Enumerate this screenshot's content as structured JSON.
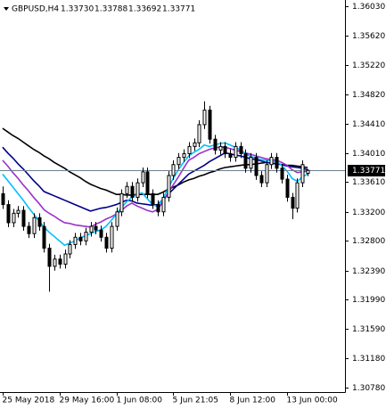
{
  "chart_data": {
    "type": "candlestick",
    "header": {
      "symbol": "GBPUSD,H4",
      "ohlc": [
        "1.33730",
        "1.33788",
        "1.33692",
        "1.33771"
      ]
    },
    "categories": [
      "25 May 2018",
      null,
      null,
      null,
      null,
      null,
      null,
      null,
      null,
      null,
      null,
      "29 May 16:00",
      null,
      null,
      null,
      null,
      null,
      null,
      null,
      null,
      null,
      null,
      "1 Jun 08:00",
      null,
      null,
      null,
      null,
      null,
      null,
      null,
      null,
      null,
      null,
      "5 Jun 21:05",
      null,
      null,
      null,
      null,
      null,
      null,
      null,
      null,
      null,
      null,
      "8 Jun 12:00",
      null,
      null,
      null,
      null,
      null,
      null,
      null,
      null,
      null,
      null,
      "13 Jun 00:00",
      null,
      null,
      null,
      null
    ],
    "open": [
      1.3345,
      1.333,
      1.3305,
      1.3318,
      1.3322,
      1.33,
      1.329,
      1.3312,
      1.33,
      1.327,
      1.3245,
      1.3255,
      1.3248,
      1.3262,
      1.3275,
      1.3285,
      1.328,
      1.3292,
      1.33,
      1.3295,
      1.3285,
      1.327,
      1.33,
      1.332,
      1.3345,
      1.3355,
      1.334,
      1.336,
      1.3375,
      1.3345,
      1.333,
      1.332,
      1.334,
      1.337,
      1.3385,
      1.3395,
      1.34,
      1.341,
      1.3415,
      1.344,
      1.346,
      1.342,
      1.3405,
      1.341,
      1.34,
      1.3395,
      1.341,
      1.34,
      1.338,
      1.3395,
      1.337,
      1.336,
      1.3385,
      1.3395,
      1.338,
      1.3365,
      1.334,
      1.3325,
      1.336,
      1.3373
    ],
    "high": [
      1.3355,
      1.3336,
      1.3324,
      1.3328,
      1.3328,
      1.3306,
      1.3318,
      1.3318,
      1.3306,
      1.3276,
      1.3261,
      1.3261,
      1.3268,
      1.3281,
      1.3291,
      1.3291,
      1.3298,
      1.3306,
      1.3306,
      1.3301,
      1.3291,
      1.3306,
      1.3326,
      1.3351,
      1.3361,
      1.3361,
      1.3366,
      1.3381,
      1.3381,
      1.3351,
      1.3336,
      1.3346,
      1.3376,
      1.3391,
      1.3401,
      1.3406,
      1.3416,
      1.3421,
      1.3446,
      1.3472,
      1.3466,
      1.3426,
      1.3416,
      1.3416,
      1.3406,
      1.3416,
      1.3416,
      1.3406,
      1.3401,
      1.3401,
      1.3376,
      1.3391,
      1.3401,
      1.3401,
      1.3386,
      1.3371,
      1.3346,
      1.3366,
      1.3391,
      1.33788
    ],
    "low": [
      1.3324,
      1.3299,
      1.3299,
      1.3312,
      1.3294,
      1.3284,
      1.3284,
      1.3294,
      1.3264,
      1.321,
      1.3239,
      1.3242,
      1.3242,
      1.3256,
      1.3269,
      1.3274,
      1.3274,
      1.3286,
      1.3289,
      1.3279,
      1.3264,
      1.3264,
      1.3294,
      1.3314,
      1.3339,
      1.3334,
      1.3334,
      1.3354,
      1.3339,
      1.3324,
      1.3314,
      1.3314,
      1.3334,
      1.3364,
      1.3379,
      1.3389,
      1.3394,
      1.3404,
      1.3409,
      1.3434,
      1.3414,
      1.3399,
      1.3399,
      1.3394,
      1.3389,
      1.3389,
      1.3394,
      1.3374,
      1.3374,
      1.3364,
      1.3354,
      1.3354,
      1.3379,
      1.3374,
      1.3359,
      1.3334,
      1.331,
      1.3319,
      1.3354,
      1.33692
    ],
    "close": [
      1.333,
      1.3305,
      1.3318,
      1.3322,
      1.33,
      1.329,
      1.3312,
      1.33,
      1.327,
      1.3245,
      1.3255,
      1.3248,
      1.3262,
      1.3275,
      1.3285,
      1.328,
      1.3292,
      1.33,
      1.3295,
      1.3285,
      1.327,
      1.33,
      1.332,
      1.3345,
      1.3355,
      1.334,
      1.336,
      1.3375,
      1.3345,
      1.333,
      1.332,
      1.334,
      1.337,
      1.3385,
      1.3395,
      1.34,
      1.341,
      1.3415,
      1.344,
      1.346,
      1.342,
      1.3405,
      1.341,
      1.34,
      1.3395,
      1.341,
      1.34,
      1.338,
      1.3395,
      1.337,
      1.336,
      1.3385,
      1.3395,
      1.338,
      1.3365,
      1.334,
      1.3325,
      1.336,
      1.3385,
      1.33771
    ],
    "series": [
      {
        "color": "#000000",
        "values": [
          1.3435,
          1.343,
          1.3425,
          1.3421,
          1.3416,
          1.3411,
          1.3406,
          1.3402,
          1.3397,
          1.3393,
          1.3388,
          1.3384,
          1.338,
          1.3375,
          1.3371,
          1.3367,
          1.3362,
          1.3358,
          1.3355,
          1.3352,
          1.335,
          1.3347,
          1.3344,
          1.3344,
          1.3343,
          1.3343,
          1.3344,
          1.3344,
          1.3344,
          1.3344,
          1.3344,
          1.3347,
          1.3351,
          1.3354,
          1.3357,
          1.3361,
          1.3364,
          1.3366,
          1.3369,
          1.3371,
          1.3374,
          1.3376,
          1.3379,
          1.3381,
          1.3382,
          1.3383,
          1.3384,
          1.3385,
          1.3385,
          1.3386,
          1.3387,
          1.3388,
          1.3387,
          1.3386,
          1.3385,
          1.3384,
          1.3384,
          1.3383,
          1.3382,
          1.3381
        ]
      },
      {
        "color": "#00008b",
        "values": [
          1.3409,
          1.3401,
          1.3394,
          1.3386,
          1.3379,
          1.3371,
          1.3363,
          1.3356,
          1.3348,
          1.3345,
          1.3342,
          1.3339,
          1.3336,
          1.3333,
          1.333,
          1.3327,
          1.3324,
          1.3321,
          1.3323,
          1.3325,
          1.3326,
          1.3328,
          1.333,
          1.3333,
          1.3336,
          1.3335,
          1.3332,
          1.3331,
          1.333,
          1.3329,
          1.333,
          1.3337,
          1.3344,
          1.3351,
          1.3358,
          1.3365,
          1.3372,
          1.3376,
          1.338,
          1.3384,
          1.3389,
          1.3393,
          1.3397,
          1.3401,
          1.34,
          1.3398,
          1.3397,
          1.3395,
          1.3393,
          1.3392,
          1.339,
          1.3388,
          1.3387,
          1.3386,
          1.3385,
          1.3383,
          1.3382,
          1.3381,
          1.338,
          1.3378
        ]
      },
      {
        "color": "#9932cc",
        "values": [
          1.3391,
          1.3383,
          1.3374,
          1.3366,
          1.3357,
          1.3349,
          1.334,
          1.3332,
          1.3323,
          1.3318,
          1.3314,
          1.3309,
          1.3305,
          1.3304,
          1.3302,
          1.3301,
          1.33,
          1.3299,
          1.3303,
          1.3306,
          1.331,
          1.3313,
          1.3317,
          1.3322,
          1.3328,
          1.3332,
          1.3328,
          1.3325,
          1.3322,
          1.332,
          1.3323,
          1.3334,
          1.3346,
          1.3357,
          1.3368,
          1.338,
          1.3391,
          1.3395,
          1.34,
          1.3403,
          1.3406,
          1.3408,
          1.3409,
          1.3409,
          1.3407,
          1.3405,
          1.3403,
          1.3401,
          1.3399,
          1.3397,
          1.3395,
          1.3393,
          1.3392,
          1.3391,
          1.3388,
          1.3384,
          1.3378,
          1.3374,
          1.3375,
          1.3376
        ]
      },
      {
        "color": "#00bfff",
        "values": [
          1.3372,
          1.3363,
          1.3354,
          1.3345,
          1.3336,
          1.3326,
          1.3317,
          1.3308,
          1.3299,
          1.3292,
          1.3286,
          1.328,
          1.3274,
          1.3277,
          1.328,
          1.3284,
          1.3287,
          1.329,
          1.3293,
          1.3295,
          1.33,
          1.3308,
          1.3317,
          1.3326,
          1.3334,
          1.334,
          1.3344,
          1.3346,
          1.3338,
          1.333,
          1.3327,
          1.3338,
          1.3352,
          1.3366,
          1.3378,
          1.3388,
          1.3397,
          1.3402,
          1.3406,
          1.3412,
          1.341,
          1.3412,
          1.3414,
          1.3415,
          1.3412,
          1.3409,
          1.3405,
          1.34,
          1.3396,
          1.3394,
          1.3392,
          1.3391,
          1.339,
          1.3389,
          1.3384,
          1.3376,
          1.3366,
          1.3362,
          1.3368,
          1.3372
        ]
      }
    ],
    "bull_color": "#ffffff",
    "bear_color": "#000000",
    "last_price": {
      "value": 1.33771,
      "label": "1.33771"
    },
    "ylim": [
      1.30719,
      1.36116
    ],
    "yticks": [
      {
        "value": 1.3603,
        "label": "1.36030"
      },
      {
        "value": 1.3562,
        "label": "1.35620"
      },
      {
        "value": 1.3522,
        "label": "1.35220"
      },
      {
        "value": 1.3482,
        "label": "1.34820"
      },
      {
        "value": 1.3441,
        "label": "1.34410"
      },
      {
        "value": 1.3401,
        "label": "1.34010"
      },
      {
        "value": 1.3361,
        "label": "1.33610"
      },
      {
        "value": 1.332,
        "label": "1.33200"
      },
      {
        "value": 1.328,
        "label": "1.32800"
      },
      {
        "value": 1.3239,
        "label": "1.32390"
      },
      {
        "value": 1.3199,
        "label": "1.31990"
      },
      {
        "value": 1.3159,
        "label": "1.31590"
      },
      {
        "value": 1.3118,
        "label": "1.31180"
      },
      {
        "value": 1.3078,
        "label": "1.30780"
      }
    ]
  }
}
